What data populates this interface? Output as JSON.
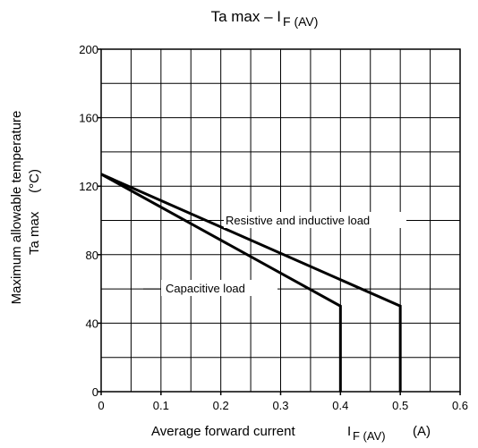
{
  "chart_data": {
    "type": "line",
    "title": "Ta max – I",
    "title_sub": "F (AV)",
    "xlabel": "Average forward current",
    "xlabel_symbol": "I",
    "xlabel_symbol_sub": "F (AV)",
    "xlabel_unit": "(A)",
    "ylabel_line1": "Maximum allowable temperature",
    "ylabel_line2": "Ta max     (°C)",
    "xlim": [
      0,
      0.6
    ],
    "ylim": [
      0,
      200
    ],
    "x_ticks": [
      0,
      0.1,
      0.2,
      0.3,
      0.4,
      0.5,
      0.6
    ],
    "x_tick_labels": [
      "0",
      "0.1",
      "0.2",
      "0.3",
      "0.4",
      "0.5",
      "0.6"
    ],
    "y_ticks": [
      0,
      40,
      80,
      120,
      160,
      200
    ],
    "y_tick_labels": [
      "0",
      "40",
      "80",
      "120",
      "160",
      "200"
    ],
    "grid": true,
    "series": [
      {
        "name": "Resistive and inductive load",
        "points": [
          [
            0,
            127
          ],
          [
            0.5,
            50
          ],
          [
            0.5,
            0
          ]
        ]
      },
      {
        "name": "Capacitive load",
        "points": [
          [
            0,
            127
          ],
          [
            0.4,
            50
          ],
          [
            0.4,
            0
          ]
        ]
      }
    ]
  }
}
